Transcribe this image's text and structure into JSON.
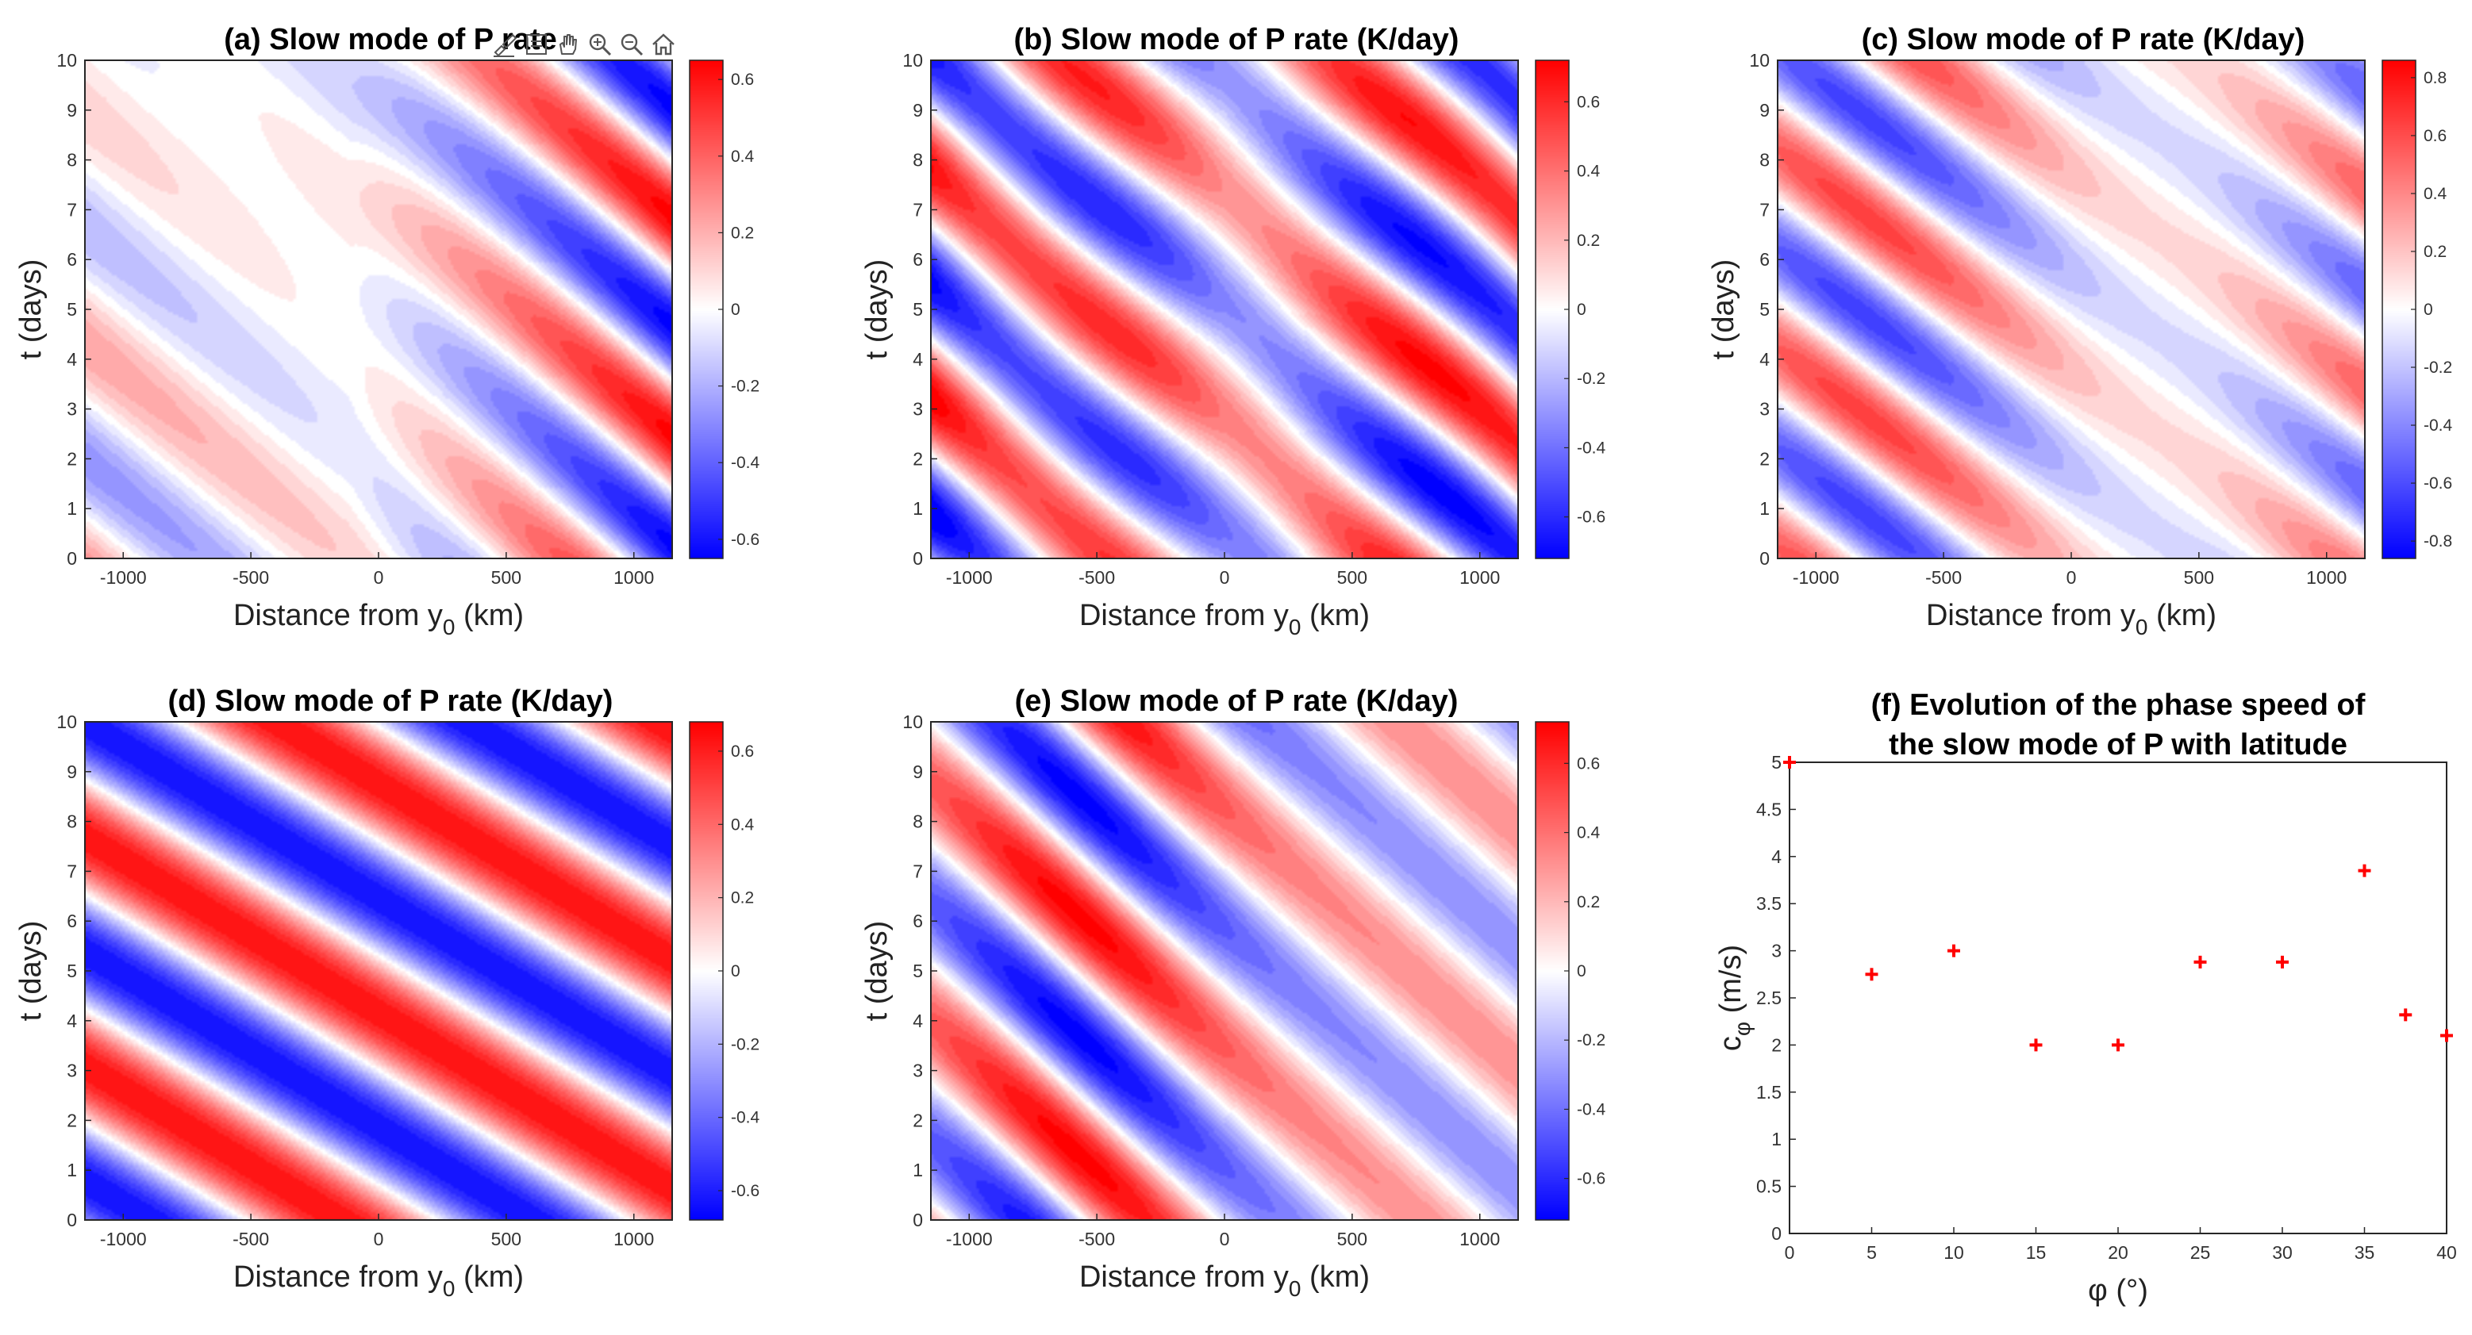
{
  "chart_data": [
    {
      "type": "heatmap",
      "id": "a",
      "title": "(a) Slow mode of P rate",
      "xlabel": "Distance from y",
      "xlabel_sub": "0",
      "xlabel_tail": " (km)",
      "ylabel": "t (days)",
      "xlim": [
        -1150,
        1150
      ],
      "ylim": [
        0,
        10
      ],
      "xticks": [
        -1000,
        -500,
        0,
        500,
        1000
      ],
      "yticks": [
        0,
        1,
        2,
        3,
        4,
        5,
        6,
        7,
        8,
        9,
        10
      ],
      "clim": [
        -0.65,
        0.65
      ],
      "cbticks": [
        "-0.6",
        "-0.4",
        "-0.2",
        "0",
        "0.2",
        "0.4",
        "0.6"
      ],
      "cbvalues": [
        -0.6,
        -0.4,
        -0.2,
        0,
        0.2,
        0.4,
        0.6
      ]
    },
    {
      "type": "heatmap",
      "id": "b",
      "title": "(b) Slow mode of P rate (K/day)",
      "xlabel": "Distance from y",
      "xlabel_sub": "0",
      "xlabel_tail": " (km)",
      "ylabel": "t (days)",
      "xlim": [
        -1150,
        1150
      ],
      "ylim": [
        0,
        10
      ],
      "xticks": [
        -1000,
        -500,
        0,
        500,
        1000
      ],
      "yticks": [
        0,
        1,
        2,
        3,
        4,
        5,
        6,
        7,
        8,
        9,
        10
      ],
      "clim": [
        -0.72,
        0.72
      ],
      "cbticks": [
        "-0.6",
        "-0.4",
        "-0.2",
        "0",
        "0.2",
        "0.4",
        "0.6"
      ],
      "cbvalues": [
        -0.6,
        -0.4,
        -0.2,
        0,
        0.2,
        0.4,
        0.6
      ]
    },
    {
      "type": "heatmap",
      "id": "c",
      "title": "(c) Slow mode of P rate (K/day)",
      "xlabel": "Distance from y",
      "xlabel_sub": "0",
      "xlabel_tail": " (km)",
      "ylabel": "t (days)",
      "xlim": [
        -1150,
        1150
      ],
      "ylim": [
        0,
        10
      ],
      "xticks": [
        -1000,
        -500,
        0,
        500,
        1000
      ],
      "yticks": [
        0,
        1,
        2,
        3,
        4,
        5,
        6,
        7,
        8,
        9,
        10
      ],
      "clim": [
        -0.86,
        0.86
      ],
      "cbticks": [
        "-0.8",
        "-0.6",
        "-0.4",
        "-0.2",
        "0",
        "0.2",
        "0.4",
        "0.6",
        "0.8"
      ],
      "cbvalues": [
        -0.8,
        -0.6,
        -0.4,
        -0.2,
        0,
        0.2,
        0.4,
        0.6,
        0.8
      ]
    },
    {
      "type": "heatmap",
      "id": "d",
      "title": "(d) Slow mode of P rate (K/day)",
      "xlabel": "Distance from y",
      "xlabel_sub": "0",
      "xlabel_tail": " (km)",
      "ylabel": "t (days)",
      "xlim": [
        -1150,
        1150
      ],
      "ylim": [
        0,
        10
      ],
      "xticks": [
        -1000,
        -500,
        0,
        500,
        1000
      ],
      "yticks": [
        0,
        1,
        2,
        3,
        4,
        5,
        6,
        7,
        8,
        9,
        10
      ],
      "clim": [
        -0.68,
        0.68
      ],
      "cbticks": [
        "-0.6",
        "-0.4",
        "-0.2",
        "0",
        "0.2",
        "0.4",
        "0.6"
      ],
      "cbvalues": [
        -0.6,
        -0.4,
        -0.2,
        0,
        0.2,
        0.4,
        0.6
      ]
    },
    {
      "type": "heatmap",
      "id": "e",
      "title": "(e) Slow mode of P rate (K/day)",
      "xlabel": "Distance from y",
      "xlabel_sub": "0",
      "xlabel_tail": " (km)",
      "ylabel": "t (days)",
      "xlim": [
        -1150,
        1150
      ],
      "ylim": [
        0,
        10
      ],
      "xticks": [
        -1000,
        -500,
        0,
        500,
        1000
      ],
      "yticks": [
        0,
        1,
        2,
        3,
        4,
        5,
        6,
        7,
        8,
        9,
        10
      ],
      "clim": [
        -0.72,
        0.72
      ],
      "cbticks": [
        "-0.6",
        "-0.4",
        "-0.2",
        "0",
        "0.2",
        "0.4",
        "0.6"
      ],
      "cbvalues": [
        -0.6,
        -0.4,
        -0.2,
        0,
        0.2,
        0.4,
        0.6
      ]
    },
    {
      "type": "scatter",
      "id": "f",
      "title_lines": [
        "(f) Evolution of the phase speed of",
        "the slow mode of P with latitude"
      ],
      "xlabel": "φ (°)",
      "ylabel": "c",
      "ylabel_sub": "φ",
      "ylabel_tail": " (m/s)",
      "xlim": [
        0,
        40
      ],
      "ylim": [
        0,
        5
      ],
      "xticks": [
        0,
        5,
        10,
        15,
        20,
        25,
        30,
        35,
        40
      ],
      "yticks": [
        0,
        0.5,
        1,
        1.5,
        2,
        2.5,
        3,
        3.5,
        4,
        4.5,
        5
      ],
      "x": [
        0,
        5,
        10,
        15,
        20,
        25,
        30,
        35,
        37.5,
        40
      ],
      "y": [
        5.0,
        2.75,
        3.0,
        2.0,
        2.0,
        2.88,
        2.88,
        3.85,
        2.32,
        2.1
      ],
      "marker": "+",
      "marker_color": "#ff0000"
    }
  ],
  "colors": {
    "positive": "#ff0000",
    "negative": "#0000ff",
    "zero": "#ffffff",
    "axis": "#262626"
  },
  "toolbar": {
    "icons": [
      "brush-icon",
      "datatip-icon",
      "pan-hand-icon",
      "zoom-in-icon",
      "zoom-out-icon",
      "home-icon"
    ]
  }
}
